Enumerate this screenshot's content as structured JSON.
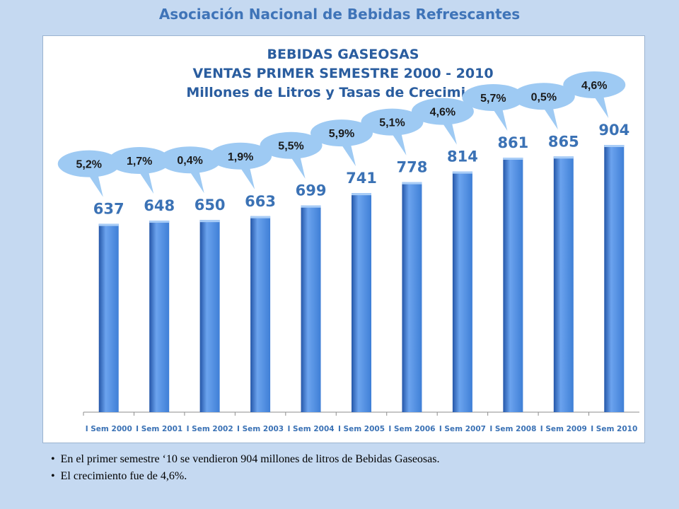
{
  "header": {
    "title": "Asociación Nacional de Bebidas  Refrescantes"
  },
  "chart_data": {
    "type": "bar",
    "title_lines": [
      "BEBIDAS GASEOSAS",
      "VENTAS PRIMER SEMESTRE 2000 - 2010",
      "Millones de Litros y Tasas de Crecimiento"
    ],
    "categories": [
      "I Sem 2000",
      "I Sem 2001",
      "I Sem 2002",
      "I Sem 2003",
      "I Sem 2004",
      "I Sem 2005",
      "I Sem 2006",
      "I Sem 2007",
      "I Sem 2008",
      "I Sem 2009",
      "I Sem 2010"
    ],
    "values": [
      637,
      648,
      650,
      663,
      699,
      741,
      778,
      814,
      861,
      865,
      904
    ],
    "growth_labels": [
      "5,2%",
      "1,7%",
      "0,4%",
      "1,9%",
      "5,5%",
      "5,9%",
      "5,1%",
      "4,6%",
      "5,7%",
      "0,5%",
      "4,6%"
    ],
    "ylim": [
      0,
      1050
    ],
    "grid": false,
    "colors": {
      "bar": "#3f7fd6",
      "bar_light": "#6ba3ee",
      "bar_dark": "#2456a8",
      "bubble": "#9ecaf3",
      "value_text": "#3b72b5"
    }
  },
  "notes": [
    "En el primer semestre  ‘10 se vendieron 904 millones de litros de  Bebidas Gaseosas.",
    "El crecimiento  fue de 4,6%."
  ]
}
